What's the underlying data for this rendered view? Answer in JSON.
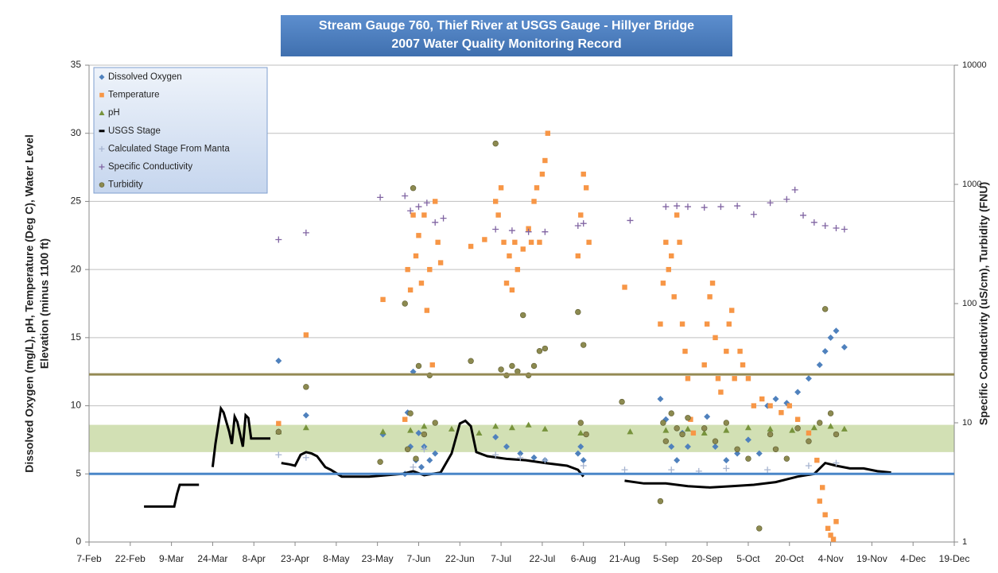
{
  "chart_data": {
    "type": "scatter",
    "title": "Stream Gauge 760, Thief River at USGS Gauge - Hillyer Bridge",
    "subtitle": "2007 Water Quality Monitoring Record",
    "ylabel": [
      "Dissolved Oxygen (mg/L), pH, Temperature (Deg C), Water Level",
      "Elevation (minus 1100 ft)"
    ],
    "y2label": "Specific Conductivity (uS/cm), Turbidity (FNU)",
    "xlim": [
      38,
      353
    ],
    "xticks": [
      {
        "value": 38,
        "label": "7-Feb"
      },
      {
        "value": 53,
        "label": "22-Feb"
      },
      {
        "value": 68,
        "label": "9-Mar"
      },
      {
        "value": 83,
        "label": "24-Mar"
      },
      {
        "value": 98,
        "label": "8-Apr"
      },
      {
        "value": 113,
        "label": "23-Apr"
      },
      {
        "value": 128,
        "label": "8-May"
      },
      {
        "value": 143,
        "label": "23-May"
      },
      {
        "value": 158,
        "label": "7-Jun"
      },
      {
        "value": 173,
        "label": "22-Jun"
      },
      {
        "value": 188,
        "label": "7-Jul"
      },
      {
        "value": 203,
        "label": "22-Jul"
      },
      {
        "value": 218,
        "label": "6-Aug"
      },
      {
        "value": 233,
        "label": "21-Aug"
      },
      {
        "value": 248,
        "label": "5-Sep"
      },
      {
        "value": 263,
        "label": "20-Sep"
      },
      {
        "value": 278,
        "label": "5-Oct"
      },
      {
        "value": 293,
        "label": "20-Oct"
      },
      {
        "value": 308,
        "label": "4-Nov"
      },
      {
        "value": 323,
        "label": "19-Nov"
      },
      {
        "value": 338,
        "label": "4-Dec"
      },
      {
        "value": 353,
        "label": "19-Dec"
      }
    ],
    "ylim": [
      0,
      35
    ],
    "yticks": [
      0,
      5,
      10,
      15,
      20,
      25,
      30,
      35
    ],
    "y2lim": [
      1,
      10000
    ],
    "y2ticks": [
      1,
      10,
      100,
      1000,
      10000
    ],
    "y2log": true,
    "grid": true,
    "legend": "upper left",
    "band": {
      "range": [
        6.6,
        8.6
      ],
      "color": "#c3d69b"
    },
    "reference_lines": [
      {
        "value": 5,
        "color": "#4a86c8"
      },
      {
        "value": 12.3,
        "color": "#948a54"
      }
    ],
    "series": [
      {
        "name": "Dissolved Oxygen",
        "marker": "diamond",
        "color": "#4f81bd",
        "x": [
          107,
          117,
          145,
          153,
          154,
          155,
          156,
          157,
          158,
          159,
          160,
          162,
          164,
          186,
          190,
          195,
          200,
          204,
          216,
          217,
          218,
          246,
          248,
          250,
          252,
          254,
          256,
          263,
          266,
          270,
          274,
          278,
          282,
          285,
          288,
          292,
          296,
          300,
          304,
          306,
          308,
          310,
          313
        ],
        "values": [
          13.3,
          9.3,
          7.9,
          5,
          9.5,
          7,
          12.5,
          6,
          8,
          5.5,
          7,
          6,
          6.5,
          7.7,
          7,
          6.5,
          6.2,
          6,
          6.5,
          7,
          6,
          10.5,
          9,
          7,
          6,
          8,
          7,
          9.2,
          7,
          6,
          6.5,
          7.5,
          6.5,
          10,
          10.5,
          10.2,
          11,
          12,
          13,
          14,
          15,
          15.5,
          14.3
        ]
      },
      {
        "name": "Temperature",
        "marker": "square",
        "color": "#f79646",
        "x": [
          107,
          117,
          145,
          153,
          154,
          155,
          156,
          157,
          158,
          159,
          160,
          161,
          162,
          163,
          164,
          165,
          166,
          177,
          182,
          186,
          187,
          188,
          189,
          190,
          191,
          192,
          193,
          194,
          196,
          198,
          199,
          200,
          201,
          202,
          203,
          204,
          205,
          216,
          217,
          218,
          219,
          220,
          233,
          246,
          247,
          248,
          249,
          250,
          251,
          252,
          253,
          254,
          255,
          256,
          257,
          258,
          262,
          263,
          264,
          265,
          266,
          267,
          268,
          270,
          271,
          272,
          273,
          275,
          276,
          278,
          280,
          283,
          286,
          290,
          293,
          296,
          300,
          303,
          304,
          305,
          306,
          307,
          308,
          309,
          310
        ],
        "values": [
          8.7,
          15.2,
          17.8,
          9,
          20,
          18.5,
          24,
          21,
          22.5,
          19,
          24,
          17,
          20,
          13,
          25,
          22,
          20.5,
          21.7,
          22.2,
          25,
          24,
          26,
          22,
          19,
          21,
          18.5,
          22,
          20,
          21.5,
          23,
          22,
          25,
          26,
          22,
          27,
          28,
          30,
          21,
          24,
          27,
          26,
          22,
          18.7,
          16,
          19,
          22,
          20,
          21,
          18,
          24,
          22,
          16,
          14,
          12,
          9,
          8,
          13,
          16,
          18,
          19,
          15,
          12,
          11,
          14,
          16,
          17,
          12,
          14,
          13,
          12,
          10,
          10.5,
          10,
          9.5,
          10,
          9,
          8,
          6,
          3,
          4,
          2,
          1,
          0.5,
          0.2,
          1.5
        ]
      },
      {
        "name": "pH",
        "marker": "triangle",
        "color": "#77933c",
        "x": [
          107,
          117,
          145,
          155,
          160,
          170,
          180,
          186,
          192,
          198,
          204,
          217,
          235,
          248,
          256,
          262,
          270,
          278,
          286,
          294,
          302,
          308,
          313
        ],
        "values": [
          8.1,
          8.4,
          8.1,
          8.2,
          8.5,
          8.3,
          8.0,
          8.5,
          8.4,
          8.6,
          8.3,
          8.0,
          8.1,
          8.2,
          8.3,
          8.0,
          8.2,
          8.4,
          8.3,
          8.2,
          8.4,
          8.5,
          8.3
        ]
      },
      {
        "name": "USGS Stage",
        "marker": "dash",
        "mode": "line",
        "color": "#000000",
        "x": [
          58,
          69,
          70,
          71,
          78,
          79,
          83,
          84,
          86,
          87,
          89,
          90,
          91,
          92,
          94,
          95,
          96,
          97,
          98,
          104,
          105,
          108,
          111,
          113,
          115,
          117,
          119,
          121,
          124,
          126,
          130,
          135,
          140,
          146,
          152,
          156,
          160,
          166,
          170,
          173,
          175,
          177,
          179,
          183,
          190,
          197,
          204,
          212,
          216,
          218,
          228,
          233,
          240,
          248,
          256,
          264,
          272,
          280,
          288,
          296,
          302,
          306,
          310,
          315,
          320,
          325,
          330
        ],
        "values": [
          2.6,
          2.6,
          3.5,
          4.2,
          4.2,
          null,
          5.5,
          7.2,
          9.8,
          9.5,
          8.1,
          7.2,
          9.2,
          8.8,
          7.0,
          9.3,
          9.1,
          7.6,
          7.6,
          7.6,
          null,
          5.8,
          5.7,
          5.6,
          6.4,
          6.6,
          6.5,
          6.3,
          5.5,
          5.3,
          4.8,
          4.8,
          4.8,
          4.9,
          5.0,
          5.2,
          4.9,
          5.1,
          6.5,
          8.7,
          8.9,
          8.5,
          6.6,
          6.3,
          6.1,
          6.0,
          5.8,
          5.6,
          5.3,
          4.8,
          null,
          4.5,
          4.3,
          4.3,
          4.1,
          4.0,
          4.1,
          4.2,
          4.4,
          4.8,
          5.0,
          5.8,
          5.6,
          5.4,
          5.4,
          5.2,
          5.1
        ]
      },
      {
        "name": "Calculated Stage From Manta",
        "marker": "plus",
        "color": "#a6b4d0",
        "x": [
          107,
          117,
          156,
          160,
          186,
          195,
          204,
          218,
          233,
          250,
          260,
          270,
          285,
          300,
          310
        ],
        "values": [
          6.4,
          6.2,
          5.5,
          6.8,
          6.4,
          6.2,
          6.0,
          5.6,
          5.3,
          5.3,
          5.2,
          5.4,
          5.3,
          5.6,
          5.8
        ]
      },
      {
        "name": "Specific Conductivity",
        "marker": "plus",
        "color": "#8064a2",
        "axis": "y2",
        "x": [
          107,
          117,
          144,
          153,
          155,
          158,
          161,
          164,
          167,
          186,
          192,
          198,
          204,
          216,
          218,
          235,
          248,
          252,
          256,
          262,
          268,
          274,
          280,
          286,
          292,
          295,
          298,
          302,
          306,
          310,
          313
        ],
        "values": [
          344,
          393,
          778,
          800,
          600,
          650,
          700,
          480,
          520,
          420,
          410,
          400,
          400,
          450,
          470,
          498,
          650,
          660,
          650,
          640,
          650,
          660,
          560,
          700,
          750,
          900,
          550,
          480,
          450,
          430,
          420
        ]
      },
      {
        "name": "Turbidity",
        "marker": "circle",
        "color": "#8c8a50",
        "axis": "y2",
        "x": [
          107,
          117,
          144,
          153,
          154,
          155,
          156,
          157,
          158,
          160,
          162,
          164,
          177,
          186,
          188,
          190,
          192,
          194,
          196,
          198,
          200,
          202,
          204,
          216,
          217,
          218,
          219,
          232,
          246,
          247,
          248,
          250,
          252,
          254,
          256,
          262,
          266,
          270,
          274,
          278,
          282,
          286,
          288,
          292,
          296,
          300,
          304,
          306,
          308,
          310
        ],
        "values": [
          8.4,
          20,
          4.7,
          100,
          6,
          12,
          930,
          5,
          30,
          8,
          25,
          10,
          33,
          2200,
          28,
          25,
          30,
          27,
          80,
          25,
          30,
          40,
          42,
          85,
          10,
          45,
          8,
          15,
          2.2,
          10,
          7,
          12,
          9,
          8,
          11,
          9,
          7,
          10,
          6,
          5,
          1.3,
          8,
          6,
          5,
          9,
          7,
          10,
          90,
          12,
          8
        ]
      }
    ]
  }
}
